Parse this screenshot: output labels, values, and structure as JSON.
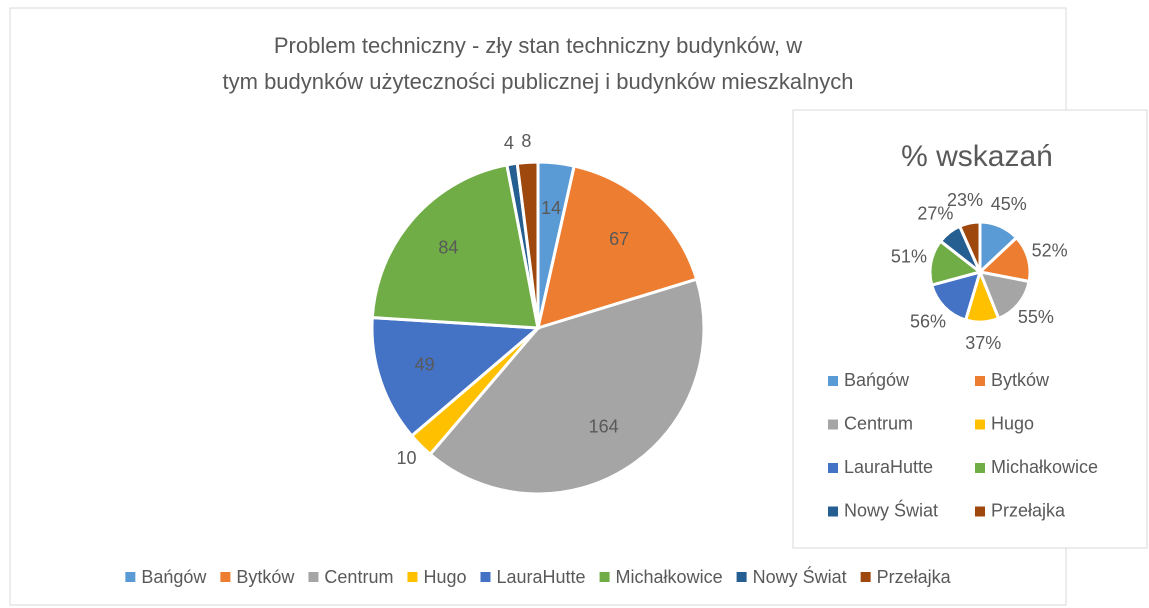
{
  "chart_data": [
    {
      "type": "pie",
      "title": "Problem techniczny - zły stan techniczny budynków, w tym budynków użyteczności publicznej i budynków mieszkalnych",
      "categories": [
        "Bańgów",
        "Bytków",
        "Centrum",
        "Hugo",
        "LauraHutte",
        "Michałkowice",
        "Nowy Świat",
        "Przełajka"
      ],
      "values": [
        14,
        67,
        164,
        10,
        49,
        84,
        4,
        8
      ],
      "colors": [
        "#5b9bd5",
        "#ed7d31",
        "#a5a5a5",
        "#ffc000",
        "#4472c4",
        "#70ad47",
        "#255e91",
        "#9e480e"
      ],
      "legend": "bottom"
    },
    {
      "type": "pie",
      "title": "% wskazań",
      "categories": [
        "Bańgów",
        "Bytków",
        "Centrum",
        "Hugo",
        "LauraHutte",
        "Michałkowice",
        "Nowy Świat",
        "Przełajka"
      ],
      "values": [
        45,
        52,
        55,
        37,
        56,
        51,
        27,
        23
      ],
      "value_labels": [
        "45%",
        "52%",
        "55%",
        "37%",
        "56%",
        "51%",
        "27%",
        "23%"
      ],
      "colors": [
        "#5b9bd5",
        "#ed7d31",
        "#a5a5a5",
        "#ffc000",
        "#4472c4",
        "#70ad47",
        "#255e91",
        "#9e480e"
      ],
      "legend": "bottom"
    }
  ]
}
